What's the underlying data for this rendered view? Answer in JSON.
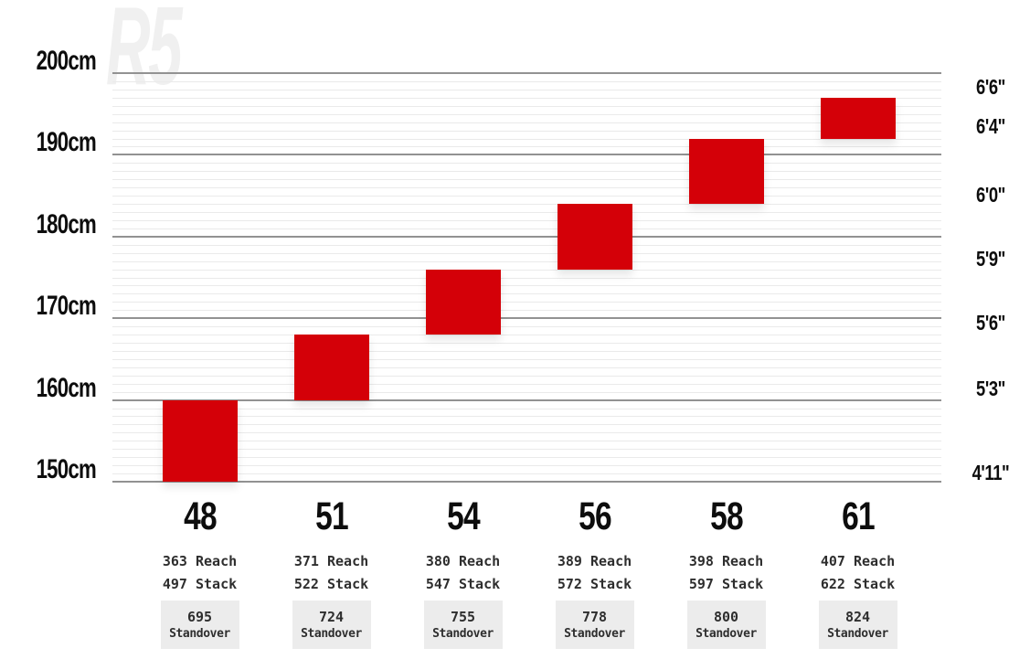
{
  "watermark": "R5",
  "colors": {
    "bar_red": "#d40008",
    "major_gridline": "#929292",
    "minor_gridline": "#eaeaea",
    "axis_text": "#0d0d0d",
    "spec_text": "#2e2e2e",
    "standover_box_bg": "#ececec"
  },
  "chart_data": {
    "type": "bar",
    "subtype": "vertical-range-bars",
    "grid": "on",
    "minor_grid_step_cm": 1,
    "ylim_cm": [
      150,
      200
    ],
    "left_axis_ticks": [
      {
        "label": "200cm",
        "cm": 200
      },
      {
        "label": "190cm",
        "cm": 190
      },
      {
        "label": "180cm",
        "cm": 180
      },
      {
        "label": "170cm",
        "cm": 170
      },
      {
        "label": "160cm",
        "cm": 160
      },
      {
        "label": "150cm",
        "cm": 150
      }
    ],
    "right_axis_ticks": [
      {
        "label": "6'6\"",
        "display_cm": 198.3
      },
      {
        "label": "6'4\"",
        "display_cm": 193.5
      },
      {
        "label": "6'0\"",
        "display_cm": 185.1
      },
      {
        "label": "5'9\"",
        "display_cm": 177.3
      },
      {
        "label": "5'6\"",
        "display_cm": 169.5
      },
      {
        "label": "5'3\"",
        "display_cm": 161.4
      },
      {
        "label": "4'11\"",
        "display_cm": 151.1
      }
    ],
    "spec_labels": {
      "reach": "Reach",
      "stack": "Stack",
      "standover": "Standover"
    },
    "sizes": [
      {
        "size": "48",
        "rider_height_cm_min": 150,
        "rider_height_cm_max": 160,
        "reach_mm": 363,
        "stack_mm": 497,
        "standover_mm": 695
      },
      {
        "size": "51",
        "rider_height_cm_min": 160,
        "rider_height_cm_max": 168,
        "reach_mm": 371,
        "stack_mm": 522,
        "standover_mm": 724
      },
      {
        "size": "54",
        "rider_height_cm_min": 168,
        "rider_height_cm_max": 176,
        "reach_mm": 380,
        "stack_mm": 547,
        "standover_mm": 755
      },
      {
        "size": "56",
        "rider_height_cm_min": 176,
        "rider_height_cm_max": 184,
        "reach_mm": 389,
        "stack_mm": 572,
        "standover_mm": 778
      },
      {
        "size": "58",
        "rider_height_cm_min": 184,
        "rider_height_cm_max": 192,
        "reach_mm": 398,
        "stack_mm": 597,
        "standover_mm": 800
      },
      {
        "size": "61",
        "rider_height_cm_min": 192,
        "rider_height_cm_max": 197,
        "reach_mm": 407,
        "stack_mm": 622,
        "standover_mm": 824
      }
    ]
  }
}
